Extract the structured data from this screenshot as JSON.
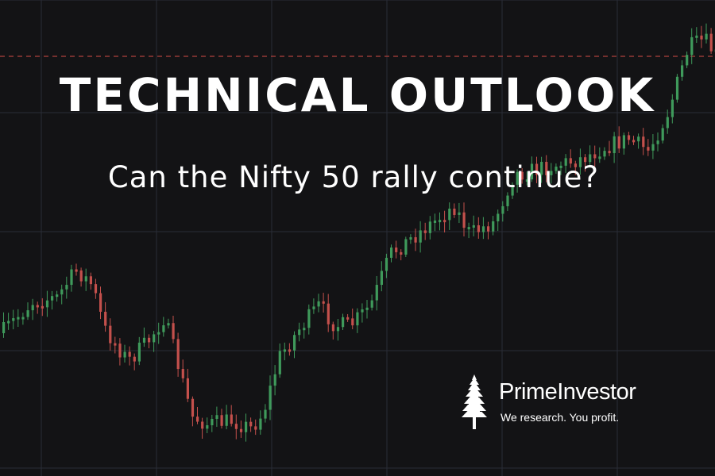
{
  "header": {
    "title": "TECHNICAL OUTLOOK",
    "subtitle": "Can the Nifty 50 rally continue?"
  },
  "brand": {
    "name": "PrimeInvestor",
    "tagline": "We research.  You profit.",
    "logo_icon": "tree-icon"
  },
  "colors": {
    "background": "#131315",
    "grid": "#2a2d36",
    "up": "#3f9a5b",
    "down": "#c4504c",
    "reference_line": "#b0413e",
    "text": "#ffffff"
  }
}
